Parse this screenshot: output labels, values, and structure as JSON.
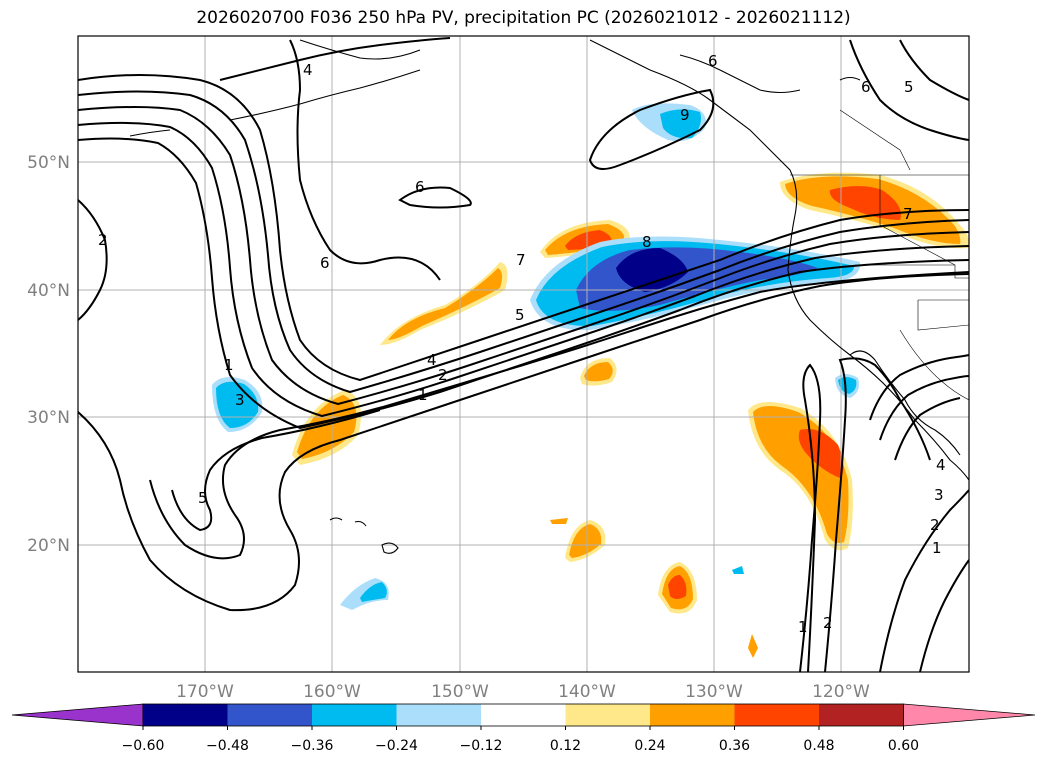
{
  "title": "2026020700 F036 250 hPa PV, precipitation PC (2026021012 - 2026021112)",
  "lat_labels": [
    "50°N",
    "40°N",
    "30°N",
    "20°N"
  ],
  "lon_labels": [
    "170°W",
    "160°W",
    "150°W",
    "140°W",
    "130°W",
    "120°W"
  ],
  "contour_labels": [
    "4",
    "6",
    "6",
    "6",
    "6",
    "5",
    "2",
    "9",
    "7",
    "8",
    "5",
    "4",
    "2",
    "1",
    "1",
    "3",
    "5",
    "7",
    "1",
    "2",
    "2",
    "3",
    "4",
    "1"
  ],
  "colorbar": {
    "colors": [
      "#9933cc",
      "#000088",
      "#3355cc",
      "#00bbf0",
      "#aadefa",
      "#ffffff",
      "#ffe88a",
      "#ffa000",
      "#ff4400",
      "#b22222",
      "#ff88aa"
    ],
    "tick_labels": [
      "−0.60",
      "−0.48",
      "−0.36",
      "−0.24",
      "−0.12",
      "0.12",
      "0.24",
      "0.36",
      "0.48",
      "0.60"
    ]
  }
}
